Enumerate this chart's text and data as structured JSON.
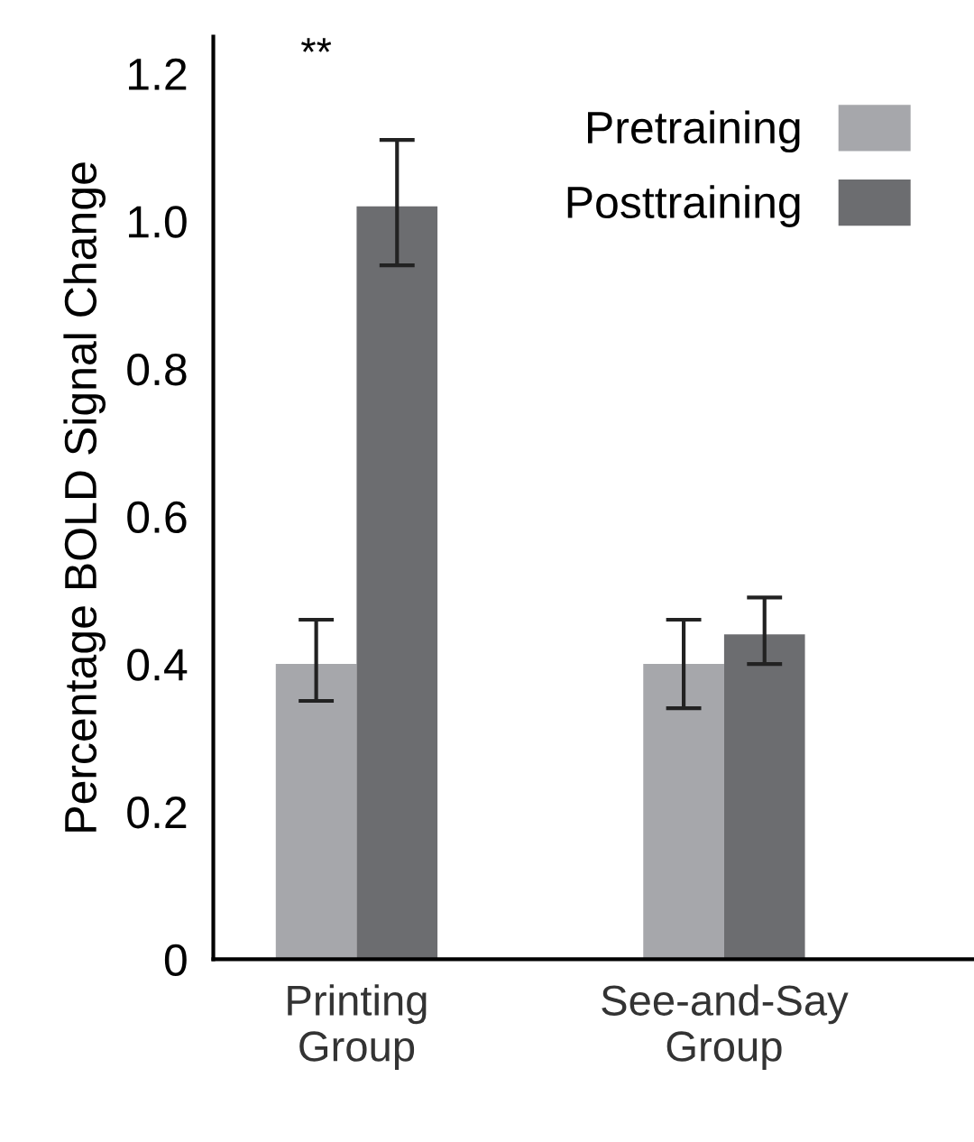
{
  "chart_data": {
    "type": "bar",
    "ylabel": "Percentage BOLD Signal Change",
    "categories": [
      "Printing\nGroup",
      "See-and-Say\nGroup"
    ],
    "series": [
      {
        "name": "Pretraining",
        "color": "#a6a7ab",
        "values": [
          0.4,
          0.4
        ],
        "errors": [
          [
            0.35,
            0.46
          ],
          [
            0.34,
            0.46
          ]
        ]
      },
      {
        "name": "Posttraining",
        "color": "#6c6d70",
        "values": [
          1.02,
          0.44
        ],
        "errors": [
          [
            0.94,
            1.11
          ],
          [
            0.4,
            0.49
          ]
        ]
      }
    ],
    "ylim": [
      0,
      1.25
    ],
    "yticks": [
      0,
      0.2,
      0.4,
      0.6,
      0.8,
      {
        "value": 1.0,
        "label": "1.0"
      },
      1.2
    ],
    "annotations": [
      "**"
    ],
    "grid": false,
    "legend": "top right"
  }
}
